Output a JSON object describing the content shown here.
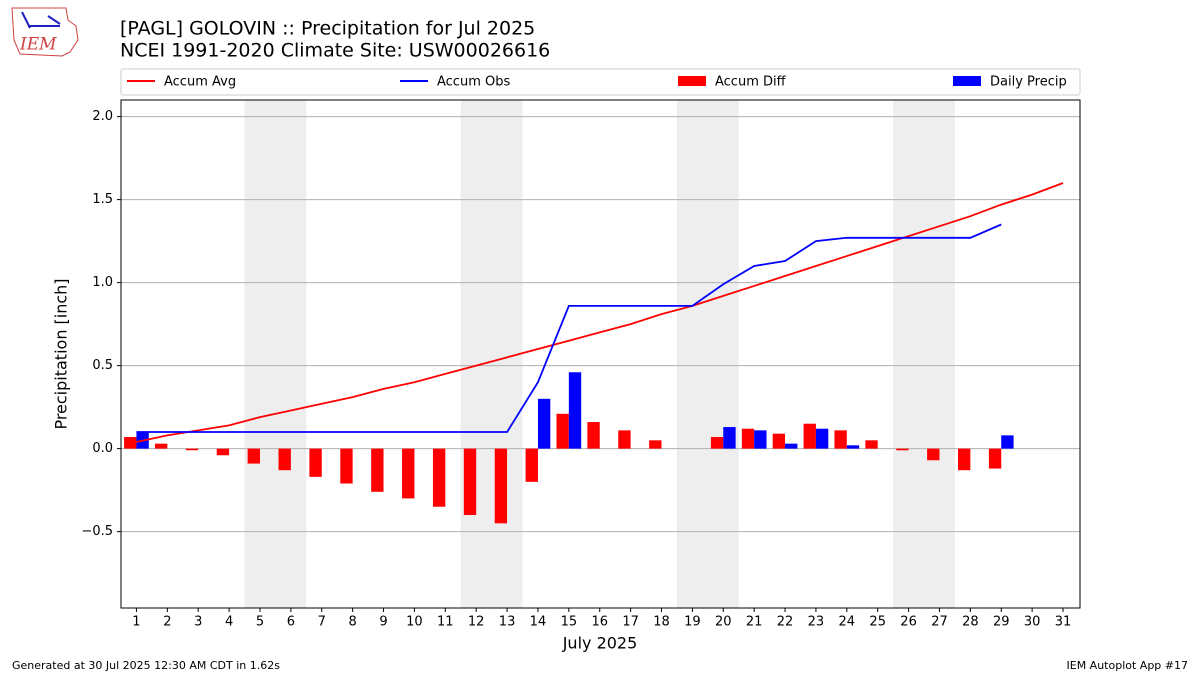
{
  "chart_data": {
    "type": "bar",
    "logo_text": "IEM",
    "title": "[PAGL] GOLOVIN :: Precipitation for Jul 2025",
    "subtitle": "NCEI 1991-2020 Climate Site: USW00026616",
    "y_label": "Precipitation [inch]",
    "x_label": "July 2025",
    "footer_left": "Generated at 30 Jul 2025 12:30 AM CDT in 1.62s",
    "footer_right": "IEM Autoplot App #17",
    "x": [
      1,
      2,
      3,
      4,
      5,
      6,
      7,
      8,
      9,
      10,
      11,
      12,
      13,
      14,
      15,
      16,
      17,
      18,
      19,
      20,
      21,
      22,
      23,
      24,
      25,
      26,
      27,
      28,
      29,
      30,
      31
    ],
    "xticks": [
      1,
      2,
      3,
      4,
      5,
      6,
      7,
      8,
      9,
      10,
      11,
      12,
      13,
      14,
      15,
      16,
      17,
      18,
      19,
      20,
      21,
      22,
      23,
      24,
      25,
      26,
      27,
      28,
      29,
      30,
      31
    ],
    "xlim": [
      0.5,
      31.55
    ],
    "ylim": [
      -0.96,
      2.1
    ],
    "yticks": [
      {
        "value": -0.5,
        "label": "−0.5"
      },
      {
        "value": 0,
        "label": "0.0"
      },
      0.5,
      {
        "value": 1,
        "label": "1.0"
      },
      1.5,
      {
        "value": 2,
        "label": "2.0"
      }
    ],
    "grid": true,
    "shade_spans": [
      [
        4.5,
        6.5
      ],
      [
        11.5,
        13.5
      ],
      [
        18.5,
        20.5
      ],
      [
        25.5,
        27.5
      ]
    ],
    "shade_color": "#eeeeee",
    "series": [
      {
        "name": "Accum Avg",
        "type": "line",
        "color": "#ff0000",
        "values": [
          0.04,
          0.08,
          0.11,
          0.14,
          0.19,
          0.23,
          0.27,
          0.31,
          0.36,
          0.4,
          0.45,
          0.5,
          0.55,
          0.6,
          0.65,
          0.7,
          0.75,
          0.81,
          0.86,
          0.92,
          0.98,
          1.04,
          1.1,
          1.16,
          1.22,
          1.28,
          1.34,
          1.4,
          1.47,
          1.53,
          1.6
        ]
      },
      {
        "name": "Accum Obs",
        "type": "line",
        "color": "#0000ff",
        "values": [
          0.1,
          0.1,
          0.1,
          0.1,
          0.1,
          0.1,
          0.1,
          0.1,
          0.1,
          0.1,
          0.1,
          0.1,
          0.1,
          0.4,
          0.86,
          0.86,
          0.86,
          0.86,
          0.86,
          0.99,
          1.1,
          1.13,
          1.25,
          1.27,
          1.27,
          1.27,
          1.27,
          1.27,
          1.35,
          null,
          null
        ]
      },
      {
        "name": "Accum Diff",
        "type": "bar",
        "offset": -0.4,
        "width": 0.4,
        "color": "#ff0000",
        "values": [
          0.07,
          0.03,
          -0.01,
          -0.04,
          -0.09,
          -0.13,
          -0.17,
          -0.21,
          -0.26,
          -0.3,
          -0.35,
          -0.4,
          -0.45,
          -0.2,
          0.21,
          0.16,
          0.11,
          0.05,
          0.0,
          0.07,
          0.12,
          0.09,
          0.15,
          0.11,
          0.05,
          -0.01,
          -0.07,
          -0.13,
          -0.12,
          null,
          null
        ]
      },
      {
        "name": "Daily Precip",
        "type": "bar",
        "offset": 0,
        "width": 0.4,
        "color": "#0000ff",
        "values": [
          0.1,
          0,
          0,
          0,
          0,
          0,
          0,
          0,
          0,
          0,
          0,
          0,
          0,
          0.3,
          0.46,
          0,
          0,
          0,
          0,
          0.13,
          0.11,
          0.03,
          0.12,
          0.02,
          0,
          0,
          0,
          0,
          0.08,
          null,
          null
        ]
      }
    ]
  }
}
